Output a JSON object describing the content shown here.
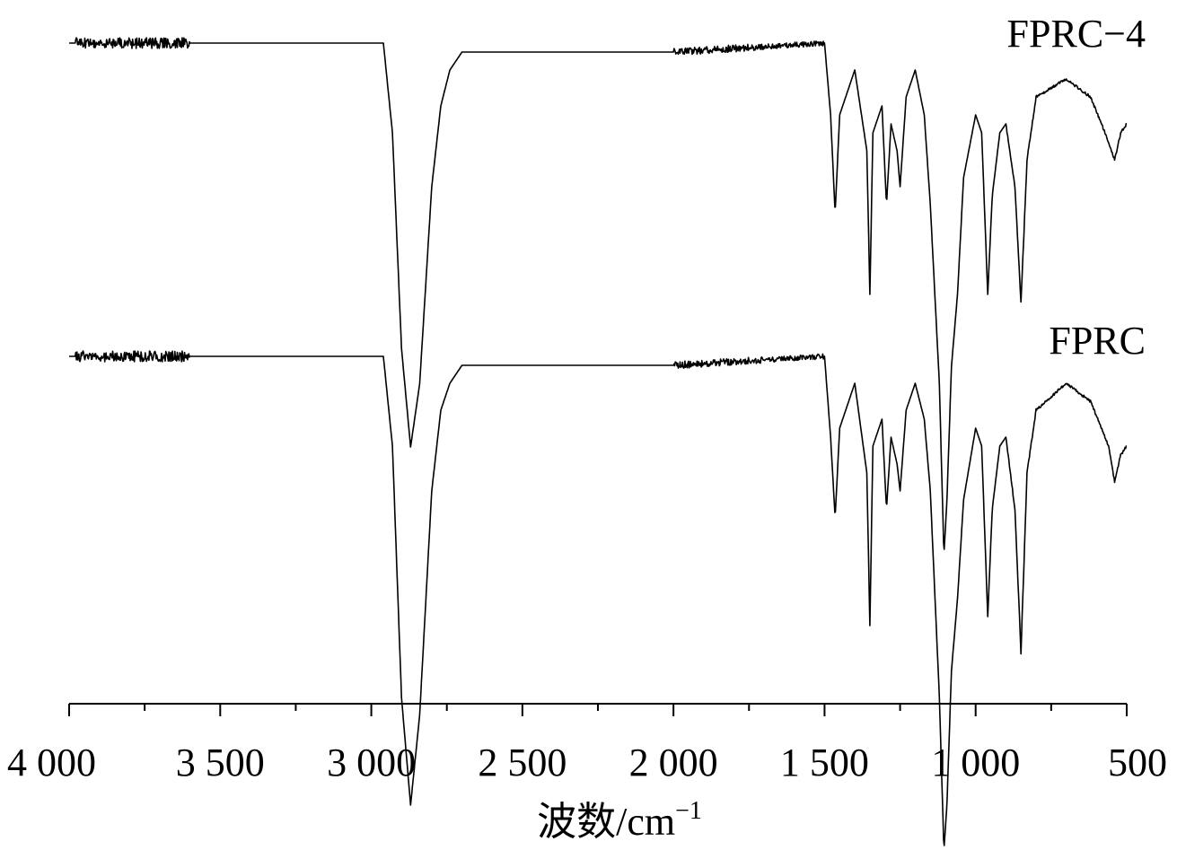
{
  "chart_data": {
    "type": "line",
    "xlabel_main": "波数",
    "xlabel_unit": "/cm",
    "xlabel_exp": "−1",
    "xlim": [
      4000,
      500
    ],
    "x_reversed": true,
    "y_axis_shown": false,
    "grid": false,
    "legend": "none",
    "x_major_ticks": [
      4000,
      3500,
      3000,
      2500,
      2000,
      1500,
      1000,
      500
    ],
    "x_minor_ticks": [
      3750,
      3250,
      2750,
      2250,
      1750,
      1250,
      750
    ],
    "x_tick_labels": [
      "4 000",
      "3 500",
      "3 000",
      "2 500",
      "2 000",
      "1 500",
      "1 000",
      "500"
    ],
    "series": [
      {
        "name": "FPRC−4",
        "baseline": 1.0,
        "points": [
          [
            4000,
            1.0
          ],
          [
            3500,
            1.0
          ],
          [
            2960,
            1.0
          ],
          [
            2930,
            0.9
          ],
          [
            2900,
            0.66
          ],
          [
            2870,
            0.55
          ],
          [
            2840,
            0.62
          ],
          [
            2800,
            0.84
          ],
          [
            2770,
            0.93
          ],
          [
            2740,
            0.97
          ],
          [
            2700,
            0.99
          ],
          [
            2000,
            0.99
          ],
          [
            1500,
            1.0
          ],
          [
            1480,
            0.92
          ],
          [
            1465,
            0.81
          ],
          [
            1450,
            0.92
          ],
          [
            1400,
            0.97
          ],
          [
            1360,
            0.88
          ],
          [
            1350,
            0.72
          ],
          [
            1340,
            0.9
          ],
          [
            1310,
            0.93
          ],
          [
            1295,
            0.82
          ],
          [
            1280,
            0.91
          ],
          [
            1260,
            0.88
          ],
          [
            1250,
            0.84
          ],
          [
            1230,
            0.94
          ],
          [
            1200,
            0.97
          ],
          [
            1170,
            0.92
          ],
          [
            1150,
            0.82
          ],
          [
            1120,
            0.62
          ],
          [
            1105,
            0.43
          ],
          [
            1095,
            0.49
          ],
          [
            1080,
            0.64
          ],
          [
            1060,
            0.72
          ],
          [
            1040,
            0.85
          ],
          [
            1000,
            0.92
          ],
          [
            980,
            0.9
          ],
          [
            960,
            0.72
          ],
          [
            945,
            0.83
          ],
          [
            920,
            0.9
          ],
          [
            900,
            0.91
          ],
          [
            870,
            0.84
          ],
          [
            850,
            0.71
          ],
          [
            830,
            0.87
          ],
          [
            800,
            0.94
          ],
          [
            700,
            0.96
          ],
          [
            620,
            0.94
          ],
          [
            560,
            0.89
          ],
          [
            540,
            0.87
          ],
          [
            520,
            0.9
          ],
          [
            500,
            0.91
          ]
        ]
      },
      {
        "name": "FPRC",
        "baseline": 1.0,
        "points": [
          [
            4000,
            1.0
          ],
          [
            3500,
            1.0
          ],
          [
            2960,
            1.0
          ],
          [
            2930,
            0.9
          ],
          [
            2900,
            0.62
          ],
          [
            2870,
            0.5
          ],
          [
            2840,
            0.6
          ],
          [
            2800,
            0.85
          ],
          [
            2770,
            0.94
          ],
          [
            2740,
            0.97
          ],
          [
            2700,
            0.99
          ],
          [
            2000,
            0.99
          ],
          [
            1500,
            1.0
          ],
          [
            1480,
            0.91
          ],
          [
            1465,
            0.82
          ],
          [
            1450,
            0.92
          ],
          [
            1400,
            0.97
          ],
          [
            1360,
            0.87
          ],
          [
            1350,
            0.7
          ],
          [
            1340,
            0.9
          ],
          [
            1310,
            0.93
          ],
          [
            1295,
            0.83
          ],
          [
            1280,
            0.91
          ],
          [
            1260,
            0.88
          ],
          [
            1250,
            0.85
          ],
          [
            1230,
            0.94
          ],
          [
            1200,
            0.97
          ],
          [
            1170,
            0.93
          ],
          [
            1150,
            0.85
          ],
          [
            1120,
            0.62
          ],
          [
            1105,
            0.45
          ],
          [
            1095,
            0.5
          ],
          [
            1080,
            0.65
          ],
          [
            1060,
            0.73
          ],
          [
            1040,
            0.84
          ],
          [
            1000,
            0.92
          ],
          [
            980,
            0.9
          ],
          [
            960,
            0.71
          ],
          [
            945,
            0.83
          ],
          [
            920,
            0.9
          ],
          [
            900,
            0.91
          ],
          [
            870,
            0.83
          ],
          [
            850,
            0.67
          ],
          [
            830,
            0.87
          ],
          [
            800,
            0.94
          ],
          [
            700,
            0.97
          ],
          [
            620,
            0.95
          ],
          [
            560,
            0.9
          ],
          [
            540,
            0.86
          ],
          [
            520,
            0.89
          ],
          [
            500,
            0.9
          ]
        ]
      }
    ]
  }
}
